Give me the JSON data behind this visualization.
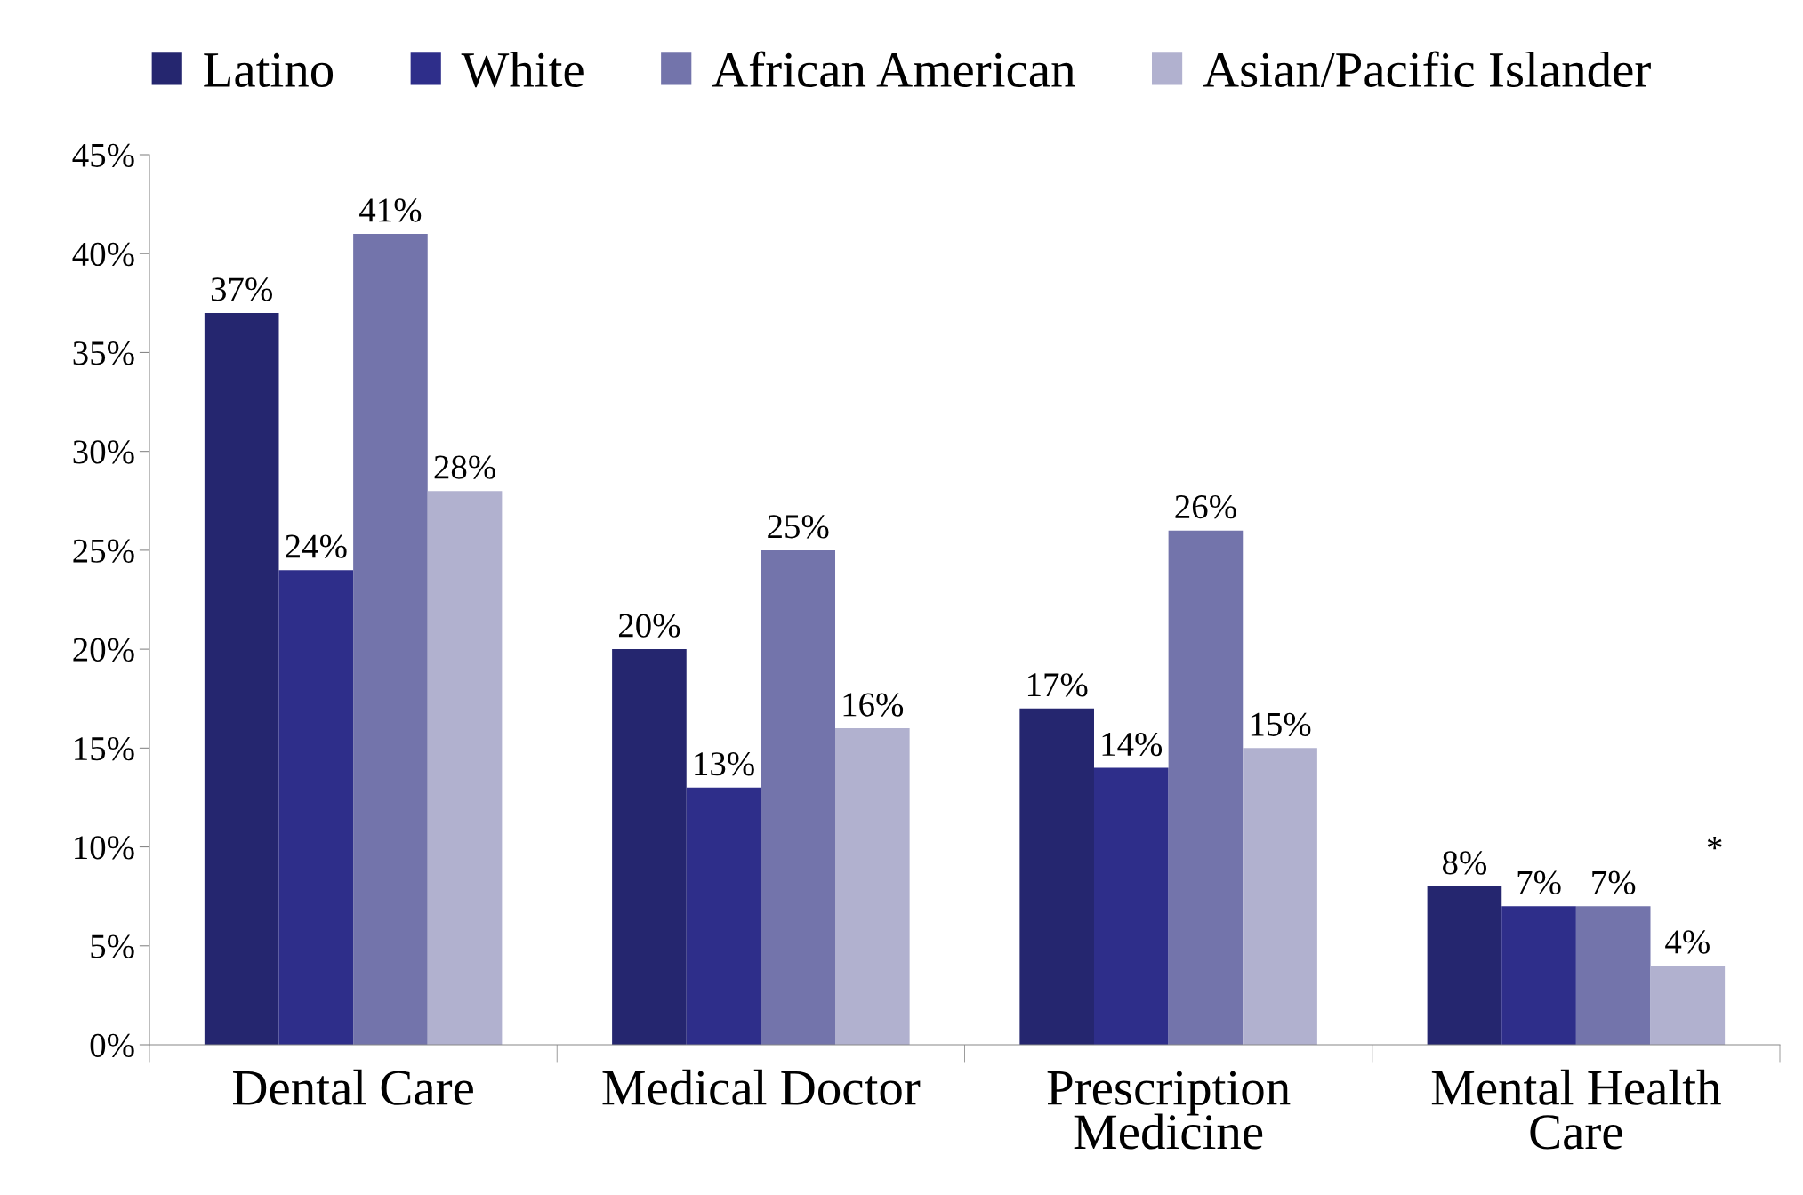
{
  "chart_data": {
    "type": "bar",
    "categories": [
      "Dental Care",
      "Medical Doctor",
      "Prescription\nMedicine",
      "Mental Health\nCare"
    ],
    "series": [
      {
        "name": "Latino",
        "color": "#25266f",
        "values": [
          37,
          20,
          17,
          8
        ],
        "value_labels": [
          "37%",
          "20%",
          "17%",
          "8%"
        ]
      },
      {
        "name": "White",
        "color": "#2e2e8a",
        "values": [
          24,
          13,
          14,
          7
        ],
        "value_labels": [
          "24%",
          "13%",
          "14%",
          "7%"
        ]
      },
      {
        "name": "African American",
        "color": "#7374ab",
        "values": [
          41,
          25,
          26,
          7
        ],
        "value_labels": [
          "41%",
          "25%",
          "26%",
          "7%"
        ]
      },
      {
        "name": "Asian/Pacific Islander",
        "color": "#b1b1cf",
        "values": [
          28,
          16,
          15,
          4
        ],
        "value_labels": [
          "28%",
          "16%",
          "15%",
          "4%"
        ]
      }
    ],
    "ylim": [
      0,
      45
    ],
    "yticks": [
      {
        "value": 0,
        "label": "0%"
      },
      {
        "value": 5,
        "label": "5%"
      },
      {
        "value": 10,
        "label": "10%"
      },
      {
        "value": 15,
        "label": "15%"
      },
      {
        "value": 20,
        "label": "20%"
      },
      {
        "value": 25,
        "label": "25%"
      },
      {
        "value": 30,
        "label": "30%"
      },
      {
        "value": 35,
        "label": "35%"
      },
      {
        "value": 40,
        "label": "40%"
      },
      {
        "value": 45,
        "label": "45%"
      }
    ],
    "annotations": [
      "*"
    ],
    "grid": false,
    "legend": "top"
  }
}
